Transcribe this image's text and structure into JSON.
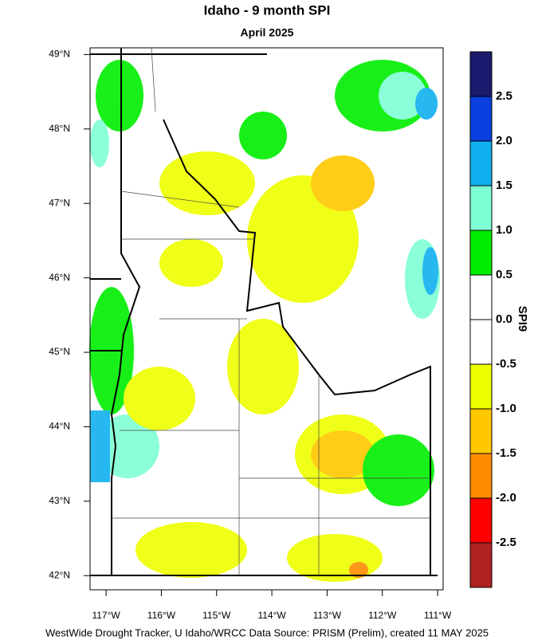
{
  "title": "Idaho - 9 month SPI",
  "subtitle": "April 2025",
  "map": {
    "xlim": [
      -117.29,
      -110.9
    ],
    "ylim": [
      41.81,
      49.09
    ],
    "xticks": [
      {
        "value": -117,
        "label": "117°W"
      },
      {
        "value": -116,
        "label": "116°W"
      },
      {
        "value": -115,
        "label": "115°W"
      },
      {
        "value": -114,
        "label": "114°W"
      },
      {
        "value": -113,
        "label": "113°W"
      },
      {
        "value": -112,
        "label": "112°W"
      },
      {
        "value": -111,
        "label": "111°W"
      }
    ],
    "yticks": [
      {
        "value": 42,
        "label": "42°N"
      },
      {
        "value": 43,
        "label": "43°N"
      },
      {
        "value": 44,
        "label": "44°N"
      },
      {
        "value": 45,
        "label": "45°N"
      },
      {
        "value": 46,
        "label": "46°N"
      },
      {
        "value": 47,
        "label": "47°N"
      },
      {
        "value": 48,
        "label": "48°N"
      },
      {
        "value": 49,
        "label": "49°N"
      }
    ]
  },
  "colorbar": {
    "title": "SPI9",
    "lim": [
      -3,
      3
    ],
    "bounds": [
      -3,
      -2.5,
      -2,
      -1.5,
      -1,
      -0.5,
      0,
      0.5,
      1,
      1.5,
      2,
      2.5,
      3
    ],
    "colors": [
      "#b22222",
      "#ff0000",
      "#ff8c00",
      "#ffc800",
      "#eeff00",
      "#ffffff",
      "#ffffff",
      "#00ee00",
      "#7fffd4",
      "#10b0f0",
      "#0a3fe0",
      "#1a1a6e"
    ],
    "ticks": [
      -2.5,
      {
        "value": -2,
        "label": "-2.0"
      },
      -1.5,
      {
        "value": -1,
        "label": "-1.0"
      },
      -0.5,
      {
        "value": 0,
        "label": "0.0"
      },
      0.5,
      {
        "value": 1,
        "label": "1.0"
      },
      1.5,
      {
        "value": 2,
        "label": "2.0"
      },
      2.5
    ]
  },
  "footer": "WestWide Drought Tracker, U Idaho/WRCC Data Source: PRISM (Prelim), created 11 MAY 2025"
}
